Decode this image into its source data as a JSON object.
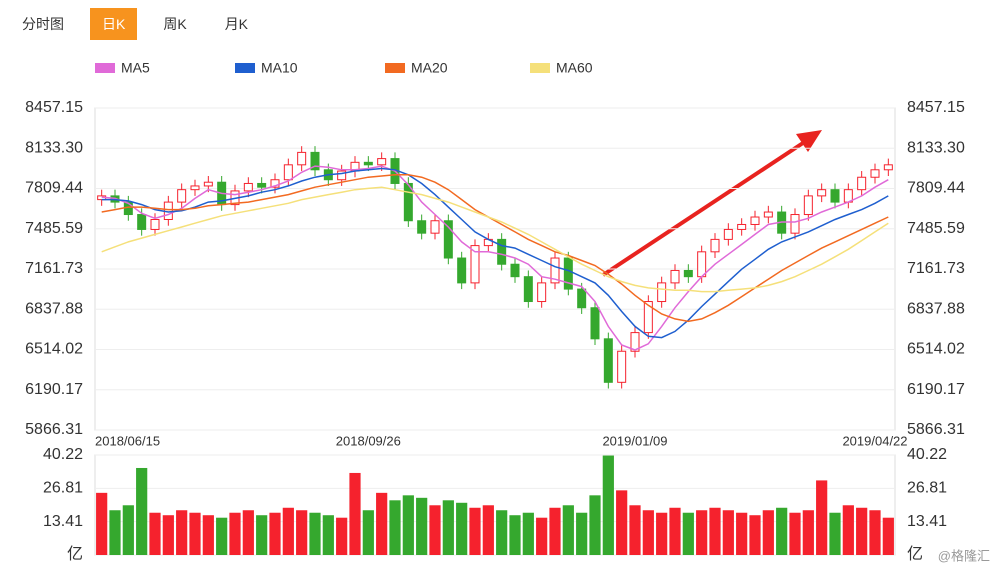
{
  "tabs": [
    {
      "label": "分时图",
      "active": false
    },
    {
      "label": "日K",
      "active": true
    },
    {
      "label": "周K",
      "active": false
    },
    {
      "label": "月K",
      "active": false
    }
  ],
  "watermark": "@格隆汇",
  "chart_data": {
    "type": "candlestick",
    "categories": [
      "2018/06/15",
      null,
      null,
      null,
      null,
      null,
      null,
      null,
      null,
      null,
      null,
      null,
      null,
      null,
      null,
      null,
      null,
      null,
      null,
      null,
      "2018/09/26",
      null,
      null,
      null,
      null,
      null,
      null,
      null,
      null,
      null,
      null,
      null,
      null,
      null,
      null,
      null,
      null,
      null,
      null,
      null,
      "2019/01/09",
      null,
      null,
      null,
      null,
      null,
      null,
      null,
      null,
      null,
      null,
      null,
      null,
      null,
      null,
      null,
      null,
      null,
      "2019/04/22",
      null
    ],
    "open": [
      7720,
      7750,
      7700,
      7600,
      7480,
      7560,
      7700,
      7800,
      7830,
      7860,
      7680,
      7790,
      7850,
      7820,
      7880,
      8000,
      8100,
      7960,
      7880,
      7950,
      8020,
      8000,
      8050,
      7850,
      7550,
      7450,
      7550,
      7250,
      7050,
      7350,
      7400,
      7200,
      7100,
      6900,
      7050,
      7250,
      7000,
      6850,
      6600,
      6250,
      6500,
      6650,
      6900,
      7050,
      7150,
      7100,
      7300,
      7400,
      7480,
      7520,
      7580,
      7620,
      7450,
      7600,
      7750,
      7800,
      7700,
      7800,
      7900,
      7960
    ],
    "high": [
      7800,
      7800,
      7750,
      7650,
      7610,
      7750,
      7850,
      7880,
      7910,
      7910,
      7840,
      7900,
      7900,
      7930,
      8050,
      8150,
      8150,
      8010,
      8000,
      8070,
      8070,
      8100,
      8100,
      7900,
      7600,
      7600,
      7600,
      7300,
      7400,
      7450,
      7450,
      7250,
      7150,
      7100,
      7300,
      7300,
      7050,
      6900,
      6650,
      6550,
      6700,
      6950,
      7100,
      7200,
      7200,
      7350,
      7450,
      7530,
      7570,
      7630,
      7670,
      7670,
      7650,
      7800,
      7850,
      7850,
      7850,
      7950,
      8010,
      8050
    ],
    "low": [
      7670,
      7650,
      7550,
      7430,
      7430,
      7510,
      7650,
      7750,
      7780,
      7630,
      7630,
      7740,
      7770,
      7770,
      7830,
      7950,
      7910,
      7830,
      7830,
      7900,
      7950,
      7950,
      7800,
      7500,
      7400,
      7400,
      7200,
      7000,
      7000,
      7300,
      7150,
      7050,
      6850,
      6850,
      7000,
      6950,
      6800,
      6550,
      6200,
      6200,
      6450,
      6600,
      6850,
      7000,
      7050,
      7050,
      7250,
      7350,
      7430,
      7470,
      7530,
      7400,
      7400,
      7550,
      7700,
      7650,
      7650,
      7750,
      7850,
      7910
    ],
    "close": [
      7750,
      7700,
      7600,
      7480,
      7560,
      7700,
      7800,
      7830,
      7860,
      7680,
      7790,
      7850,
      7820,
      7880,
      8000,
      8100,
      7960,
      7880,
      7950,
      8020,
      8000,
      8050,
      7850,
      7550,
      7450,
      7550,
      7250,
      7050,
      7350,
      7400,
      7200,
      7100,
      6900,
      7050,
      7250,
      7000,
      6850,
      6600,
      6250,
      6500,
      6650,
      6900,
      7050,
      7150,
      7100,
      7300,
      7400,
      7480,
      7520,
      7580,
      7620,
      7450,
      7600,
      7750,
      7800,
      7700,
      7800,
      7900,
      7960,
      8000
    ],
    "up_color": "#f5222d",
    "down_color": "#35a82e",
    "series": [
      {
        "name": "MA5",
        "color": "#e06ad8",
        "values": [
          7740,
          7730,
          7690,
          7610,
          7570,
          7600,
          7650,
          7730,
          7800,
          7770,
          7760,
          7780,
          7800,
          7830,
          7870,
          7940,
          7990,
          7980,
          7960,
          7960,
          7970,
          7990,
          7950,
          7840,
          7700,
          7600,
          7500,
          7380,
          7300,
          7300,
          7280,
          7250,
          7200,
          7100,
          7080,
          7050,
          7020,
          6900,
          6700,
          6550,
          6510,
          6560,
          6700,
          6850,
          6980,
          7100,
          7200,
          7280,
          7360,
          7440,
          7520,
          7540,
          7540,
          7570,
          7620,
          7660,
          7700,
          7750,
          7820,
          7880
        ]
      },
      {
        "name": "MA10",
        "color": "#1f5fcf",
        "values": [
          7720,
          7720,
          7710,
          7680,
          7640,
          7620,
          7630,
          7660,
          7700,
          7710,
          7730,
          7750,
          7780,
          7800,
          7830,
          7870,
          7900,
          7920,
          7930,
          7950,
          7960,
          7970,
          7960,
          7920,
          7850,
          7760,
          7660,
          7560,
          7460,
          7400,
          7350,
          7330,
          7280,
          7230,
          7180,
          7150,
          7100,
          7050,
          6950,
          6820,
          6700,
          6620,
          6610,
          6660,
          6750,
          6860,
          6960,
          7060,
          7160,
          7240,
          7320,
          7380,
          7420,
          7460,
          7510,
          7560,
          7600,
          7640,
          7690,
          7750
        ]
      },
      {
        "name": "MA20",
        "color": "#f26a21",
        "values": [
          7620,
          7640,
          7660,
          7660,
          7650,
          7640,
          7640,
          7650,
          7670,
          7680,
          7690,
          7700,
          7720,
          7740,
          7760,
          7790,
          7820,
          7840,
          7860,
          7880,
          7900,
          7910,
          7920,
          7920,
          7900,
          7860,
          7800,
          7720,
          7640,
          7580,
          7520,
          7460,
          7400,
          7350,
          7300,
          7270,
          7230,
          7190,
          7120,
          7040,
          6950,
          6870,
          6800,
          6760,
          6740,
          6760,
          6810,
          6870,
          6940,
          7010,
          7080,
          7150,
          7210,
          7270,
          7330,
          7380,
          7430,
          7480,
          7530,
          7580
        ]
      },
      {
        "name": "MA60",
        "color": "#f5e07a",
        "values": [
          7300,
          7340,
          7380,
          7410,
          7440,
          7470,
          7500,
          7530,
          7560,
          7590,
          7610,
          7630,
          7650,
          7670,
          7690,
          7720,
          7740,
          7760,
          7780,
          7800,
          7810,
          7820,
          7800,
          7780,
          7760,
          7730,
          7700,
          7660,
          7620,
          7580,
          7540,
          7490,
          7440,
          7380,
          7320,
          7260,
          7200,
          7150,
          7100,
          7060,
          7030,
          7010,
          7000,
          6990,
          6990,
          6980,
          6980,
          6990,
          7000,
          7010,
          7030,
          7060,
          7100,
          7150,
          7200,
          7260,
          7320,
          7390,
          7460,
          7530
        ]
      }
    ],
    "ylim": [
      5866.31,
      8457.15
    ],
    "yticks": [
      5866.31,
      6190.17,
      6514.02,
      6837.88,
      7161.73,
      7485.59,
      7809.44,
      {
        "value": 8133.3,
        "label": "8133.30"
      },
      8457.15
    ],
    "grid": true,
    "volume": {
      "values": [
        25,
        18,
        20,
        35,
        17,
        16,
        18,
        17,
        16,
        15,
        17,
        18,
        16,
        17,
        19,
        18,
        17,
        16,
        15,
        33,
        18,
        25,
        22,
        24,
        23,
        20,
        22,
        21,
        19,
        20,
        18,
        16,
        17,
        15,
        19,
        20,
        17,
        24,
        40,
        26,
        20,
        18,
        17,
        19,
        17,
        18,
        19,
        18,
        17,
        16,
        18,
        19,
        17,
        18,
        30,
        17,
        20,
        19,
        18,
        15
      ],
      "ylim": [
        0,
        40.22
      ],
      "yticks": [
        {
          "value": 0,
          "label": "亿"
        },
        13.41,
        26.81,
        40.22
      ]
    }
  }
}
